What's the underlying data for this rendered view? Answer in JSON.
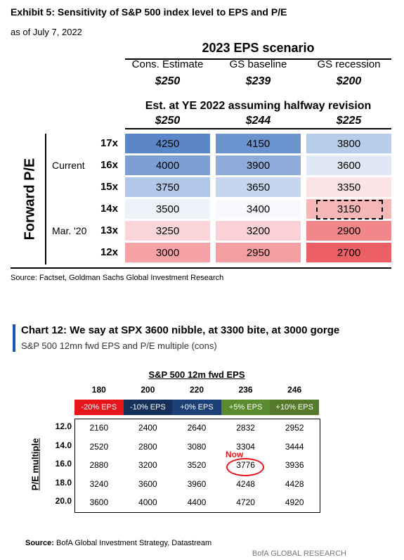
{
  "exhibit": {
    "title": "Exhibit 5: Sensitivity of S&P 500 index level to EPS and P/E",
    "subtitle": "as of July 7, 2022",
    "header": "2023 EPS scenario",
    "scenarios": [
      "Cons. Estimate",
      "GS baseline",
      "GS recession"
    ],
    "eps": [
      "$250",
      "$239",
      "$200"
    ],
    "revision_header": "Est. at YE 2022 assuming halfway revision",
    "revised_eps": [
      "$250",
      "$244",
      "$225"
    ],
    "axis_label": "Forward P/E",
    "rows": [
      {
        "marker": null,
        "pe": "17x",
        "values": [
          4250,
          4150,
          3800
        ],
        "colors": [
          "#5b87c8",
          "#6b93cd",
          "#b8cdea"
        ]
      },
      {
        "marker": "Current",
        "pe": "16x",
        "values": [
          4000,
          3900,
          3600
        ],
        "colors": [
          "#7c9fd4",
          "#8eacd9",
          "#dfe8f5"
        ]
      },
      {
        "marker": null,
        "pe": "15x",
        "values": [
          3750,
          3650,
          3350
        ],
        "colors": [
          "#b3c8e8",
          "#c6d6ee",
          "#fbe4e6"
        ]
      },
      {
        "marker": null,
        "pe": "14x",
        "values": [
          3500,
          3400,
          3150
        ],
        "colors": [
          "#eef3fa",
          "#f7f9fc",
          "#f6b7b9"
        ]
      },
      {
        "marker": "Mar. '20",
        "pe": "13x",
        "values": [
          3250,
          3200,
          2900
        ],
        "colors": [
          "#fbd6d9",
          "#fad1d4",
          "#f2878b"
        ]
      },
      {
        "marker": null,
        "pe": "12x",
        "values": [
          3000,
          2950,
          2700
        ],
        "colors": [
          "#f5a3a6",
          "#f4a0a3",
          "#ec5f64"
        ]
      }
    ],
    "source": "Source: Factset, Goldman Sachs Global Investment Research"
  },
  "chart12": {
    "title": "Chart 12: We say at SPX 3600 nibble, at 3300 bite, at 3000 gorge",
    "subtitle": "S&P 500 12mn fwd EPS and P/E multiple (cons)",
    "header": "S&P 500 12m fwd EPS",
    "eps": [
      180,
      200,
      220,
      236,
      246
    ],
    "changes": [
      "-20% EPS",
      "-10% EPS",
      "+0% EPS",
      "+5% EPS",
      "+10% EPS"
    ],
    "change_colors": [
      "#e8161b",
      "#16305a",
      "#1c3f78",
      "#5b8a2f",
      "#557a2c"
    ],
    "axis_label": "P/E multiple",
    "rows": [
      {
        "pe": "12.0",
        "values": [
          2160,
          2400,
          2640,
          2832,
          2952
        ]
      },
      {
        "pe": "14.0",
        "values": [
          2520,
          2800,
          3080,
          3304,
          3444
        ]
      },
      {
        "pe": "16.0",
        "values": [
          2880,
          3200,
          3520,
          3776,
          3936
        ]
      },
      {
        "pe": "18.0",
        "values": [
          3240,
          3600,
          3960,
          4248,
          4428
        ]
      },
      {
        "pe": "20.0",
        "values": [
          3600,
          4000,
          4400,
          4720,
          4920
        ]
      }
    ],
    "annotation": "Now",
    "source_label": "Source:",
    "source_text": "BofA Global Investment Strategy, Datastream",
    "footer": "BofA GLOBAL RESEARCH"
  }
}
